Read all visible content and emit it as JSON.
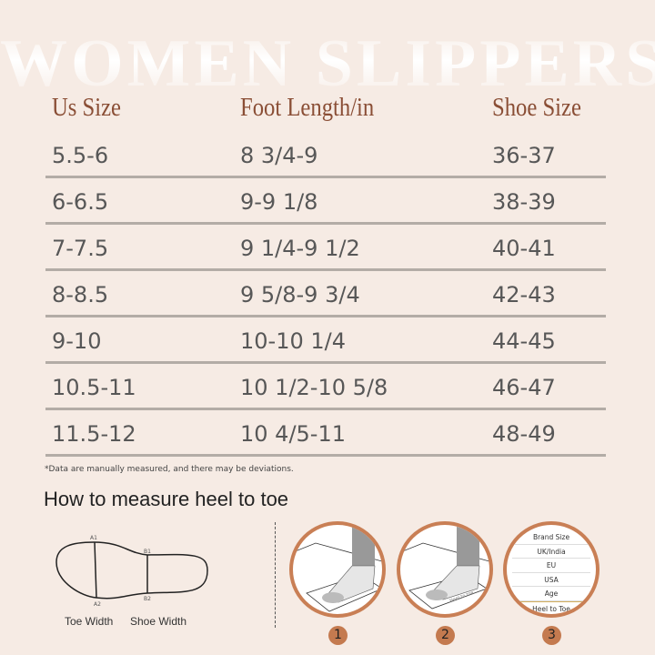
{
  "watermark": "WOMEN SLIPPERS",
  "headers": [
    "Us Size",
    "Foot Length/in",
    "Shoe Size"
  ],
  "rows": [
    [
      "5.5-6",
      "8 3/4-9",
      "36-37"
    ],
    [
      "6-6.5",
      "9-9 1/8",
      "38-39"
    ],
    [
      "7-7.5",
      "9 1/4-9 1/2",
      "40-41"
    ],
    [
      "8-8.5",
      "9 5/8-9 3/4",
      "42-43"
    ],
    [
      "9-10",
      "10-10 1/4",
      "44-45"
    ],
    [
      "10.5-11",
      "10 1/2-10 5/8",
      "46-47"
    ],
    [
      "11.5-12",
      "10 4/5-11",
      "48-49"
    ]
  ],
  "note": "*Data are manually measured, and there may be deviations.",
  "howto": "How to measure heel to toe",
  "diagram": {
    "a1": "A1",
    "a2": "A2",
    "b1": "B1",
    "b2": "B2",
    "toe_width": "Toe Width",
    "shoe_width": "Shoe Width"
  },
  "steps": [
    "1",
    "2",
    "3"
  ],
  "step2_label": "Heel to toe",
  "size_table": [
    "Brand Size",
    "UK/India",
    "EU",
    "USA",
    "Age",
    "Heel to Toe"
  ],
  "colors": {
    "background": "#f6ebe4",
    "header": "#8a4e35",
    "accent": "#c97f55"
  }
}
